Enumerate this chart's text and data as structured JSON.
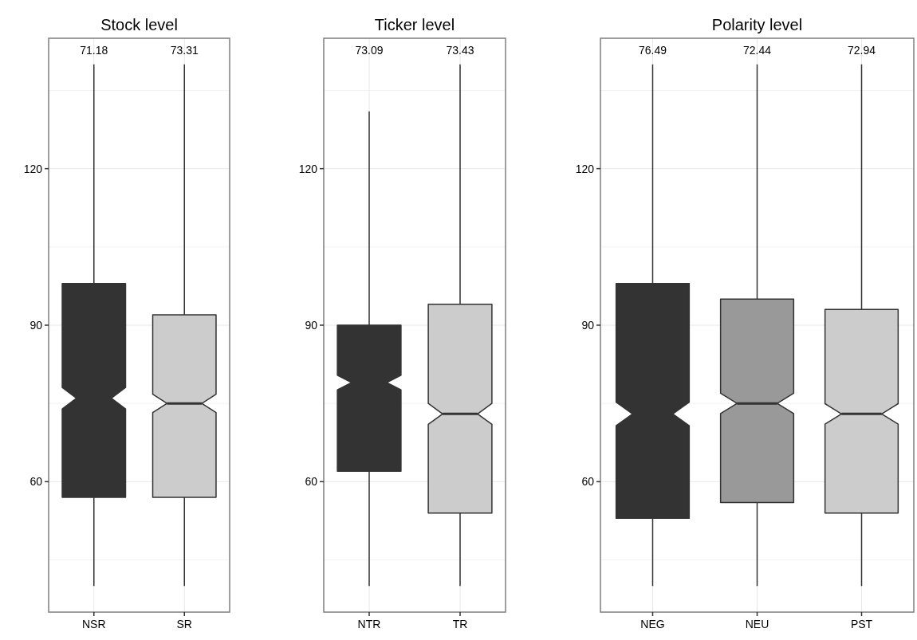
{
  "chart_data": [
    {
      "type": "box",
      "title": "Stock level",
      "categories": [
        "NSR",
        "SR"
      ],
      "colors": [
        "#333333",
        "#cccccc"
      ],
      "ylim": [
        35,
        145
      ],
      "yticks": [
        60,
        90,
        120
      ],
      "grid": true,
      "boxes": [
        {
          "low": 40,
          "q1": 57,
          "median": 76,
          "q3": 98,
          "high": 140
        },
        {
          "low": 40,
          "q1": 57,
          "median": 75,
          "q3": 92,
          "high": 140
        }
      ],
      "annotations": [
        "71.18",
        "73.31"
      ]
    },
    {
      "type": "box",
      "title": "Ticker level",
      "categories": [
        "NTR",
        "TR"
      ],
      "colors": [
        "#333333",
        "#cccccc"
      ],
      "ylim": [
        35,
        145
      ],
      "yticks": [
        60,
        90,
        120
      ],
      "grid": true,
      "boxes": [
        {
          "low": 40,
          "q1": 62,
          "median": 79,
          "q3": 90,
          "high": 131
        },
        {
          "low": 40,
          "q1": 54,
          "median": 73,
          "q3": 94,
          "high": 140
        }
      ],
      "annotations": [
        "73.09",
        "73.43"
      ]
    },
    {
      "type": "box",
      "title": "Polarity level",
      "categories": [
        "NEG",
        "NEU",
        "PST"
      ],
      "colors": [
        "#333333",
        "#999999",
        "#cccccc"
      ],
      "ylim": [
        35,
        145
      ],
      "yticks": [
        60,
        90,
        120
      ],
      "grid": true,
      "boxes": [
        {
          "low": 40,
          "q1": 53,
          "median": 73,
          "q3": 98,
          "high": 140
        },
        {
          "low": 40,
          "q1": 56,
          "median": 75,
          "q3": 95,
          "high": 140
        },
        {
          "low": 40,
          "q1": 54,
          "median": 73,
          "q3": 93,
          "high": 140
        }
      ],
      "annotations": [
        "76.49",
        "72.44",
        "72.94"
      ]
    }
  ]
}
